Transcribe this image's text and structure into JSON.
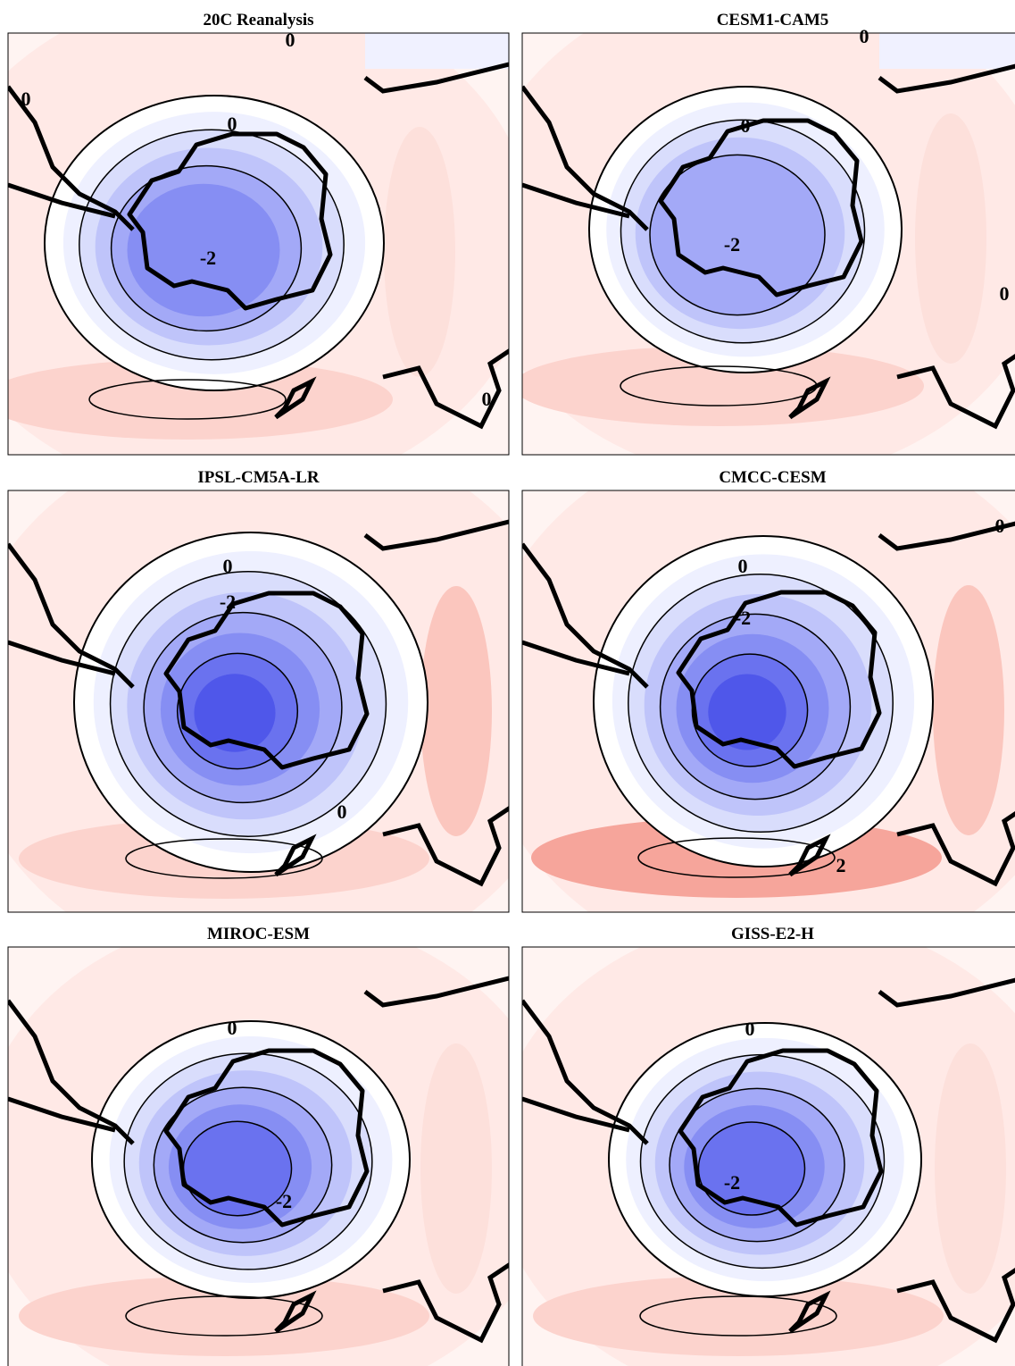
{
  "panels": [
    {
      "title": "20C Reanalysis",
      "contour_labels": [
        "0",
        "0",
        "0",
        "-2",
        "0"
      ]
    },
    {
      "title": "CESM1-CAM5",
      "contour_labels": [
        "0",
        "0",
        "-2",
        "0"
      ]
    },
    {
      "title": "IPSL-CM5A-LR",
      "contour_labels": [
        "0",
        "-2",
        "0"
      ]
    },
    {
      "title": "CMCC-CESM",
      "contour_labels": [
        "0",
        "-2",
        "2",
        "0"
      ]
    },
    {
      "title": "MIROC-ESM",
      "contour_labels": [
        "0",
        "-2"
      ]
    },
    {
      "title": "GISS-E2-H",
      "contour_labels": [
        "0",
        "-2"
      ]
    }
  ]
}
